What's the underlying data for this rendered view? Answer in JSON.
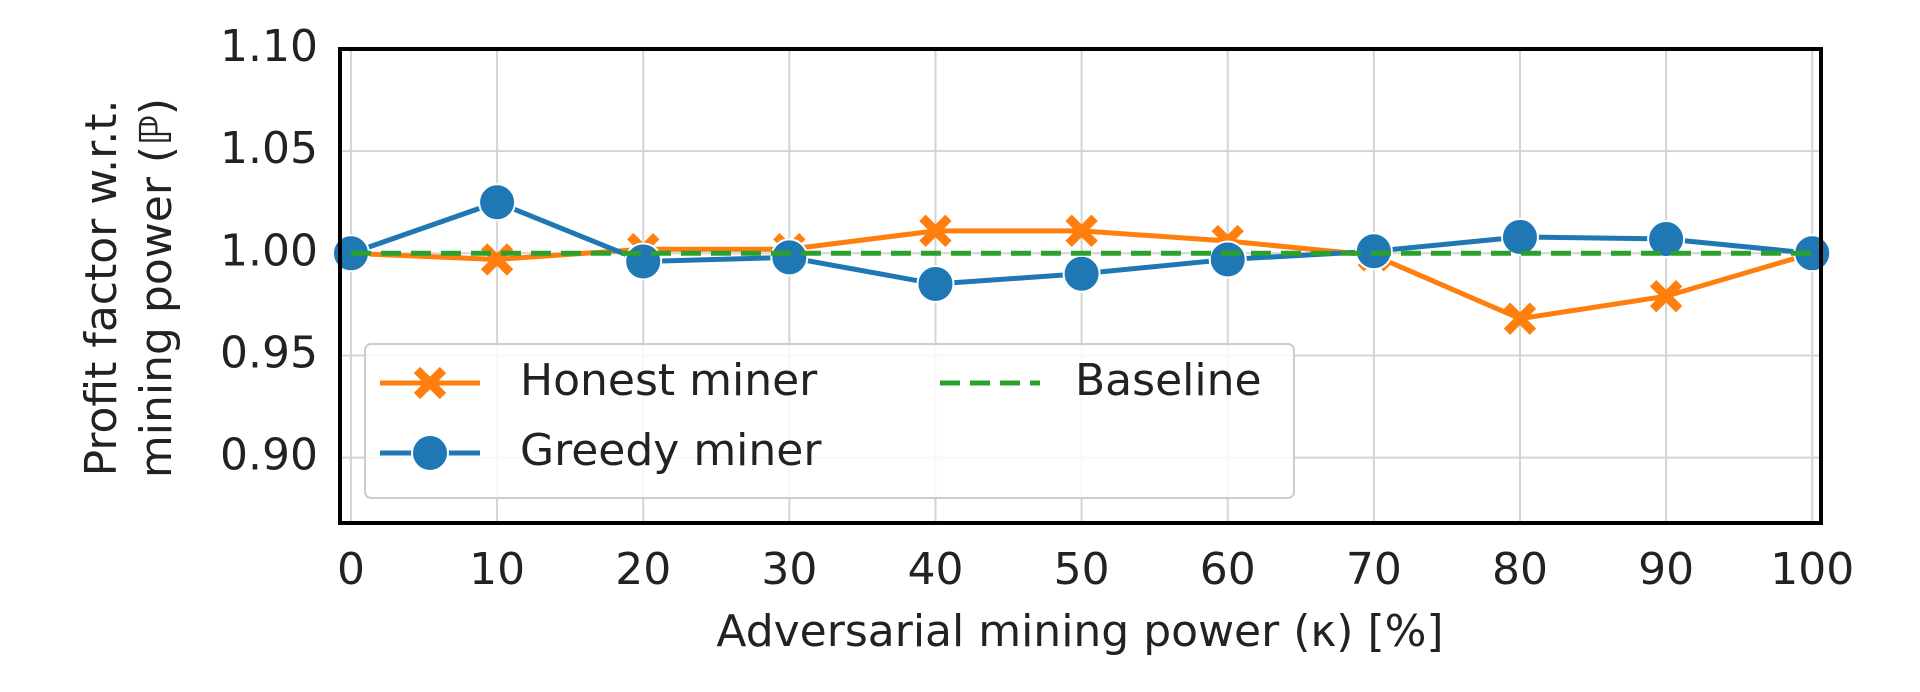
{
  "chart_data": {
    "type": "line",
    "x": [
      0,
      10,
      20,
      30,
      40,
      50,
      60,
      70,
      80,
      90,
      100
    ],
    "series": [
      {
        "name": "Honest miner",
        "color": "#ff7f0e",
        "marker": "x",
        "linestyle": "solid",
        "values": [
          1.0,
          0.997,
          1.002,
          1.002,
          1.011,
          1.011,
          1.006,
          0.999,
          0.968,
          0.979,
          1.0
        ]
      },
      {
        "name": "Greedy miner",
        "color": "#1f77b4",
        "marker": "o",
        "linestyle": "solid",
        "values": [
          1.0,
          1.025,
          0.996,
          0.998,
          0.985,
          0.99,
          0.997,
          1.001,
          1.008,
          1.007,
          1.0
        ]
      },
      {
        "name": "Baseline",
        "color": "#2ca02c",
        "marker": "none",
        "linestyle": "dashed",
        "values": [
          1.0,
          1.0,
          1.0,
          1.0,
          1.0,
          1.0,
          1.0,
          1.0,
          1.0,
          1.0,
          1.0
        ]
      }
    ],
    "xlabel": "Adversarial mining power (κ) [%]",
    "ylabel": [
      "Profit factor w.r.t.",
      "mining power (ℙ)"
    ],
    "xlim": [
      -0.75,
      100.6
    ],
    "ylim": [
      0.868,
      1.1
    ],
    "xticks": [
      0,
      10,
      20,
      30,
      40,
      50,
      60,
      70,
      80,
      90,
      100
    ],
    "yticks": [
      {
        "value": 0.9,
        "label": "0.90"
      },
      0.95,
      {
        "value": 1.0,
        "label": "1.00"
      },
      1.05,
      {
        "value": 1.1,
        "label": "1.10"
      }
    ],
    "grid": true,
    "legend": "lower left"
  }
}
